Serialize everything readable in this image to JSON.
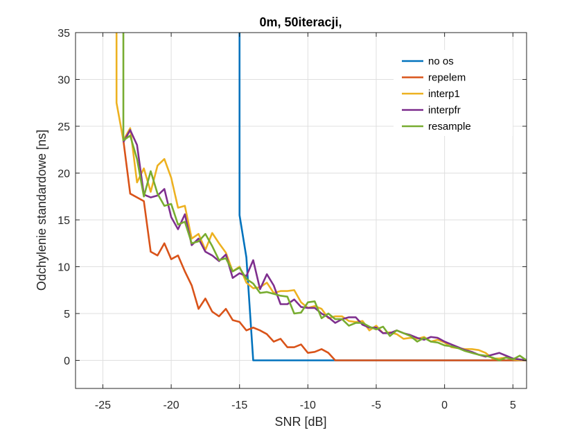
{
  "chart_data": {
    "type": "line",
    "title": "0m, 50iteracji,",
    "xlabel": "SNR [dB]",
    "ylabel": "Odchylenie standardowe [ns]",
    "xlim": [
      -27,
      6
    ],
    "ylim": [
      -3,
      35
    ],
    "xticks": [
      -25,
      -20,
      -15,
      -10,
      -5,
      0,
      5
    ],
    "yticks": [
      0,
      5,
      10,
      15,
      20,
      25,
      30,
      35
    ],
    "grid": true,
    "legend_position": "top-right",
    "series": [
      {
        "name": "no os",
        "color": "#0072BD",
        "points": [
          [
            -15,
            35
          ],
          [
            -15,
            15.5
          ],
          [
            -14.5,
            11
          ],
          [
            -14,
            0
          ],
          [
            6,
            0
          ]
        ]
      },
      {
        "name": "repelem",
        "color": "#D95319",
        "points": [
          [
            -23.5,
            23.5
          ],
          [
            -23,
            17.8
          ],
          [
            -22,
            17
          ],
          [
            -21.5,
            11.6
          ],
          [
            -21,
            11.2
          ],
          [
            -20.5,
            12.5
          ],
          [
            -20,
            10.8
          ],
          [
            -19.5,
            11.2
          ],
          [
            -19,
            9.5
          ],
          [
            -18.5,
            8
          ],
          [
            -18,
            5.5
          ],
          [
            -17.5,
            6.6
          ],
          [
            -17,
            5.2
          ],
          [
            -16.5,
            4.7
          ],
          [
            -16,
            5.5
          ],
          [
            -15.5,
            4.3
          ],
          [
            -15,
            4.1
          ],
          [
            -14.5,
            3.2
          ],
          [
            -14,
            3.5
          ],
          [
            -13.5,
            3.2
          ],
          [
            -13,
            2.8
          ],
          [
            -12.5,
            2
          ],
          [
            -12,
            2.3
          ],
          [
            -11.5,
            1.4
          ],
          [
            -11,
            1.4
          ],
          [
            -10.5,
            1.7
          ],
          [
            -10,
            0.8
          ],
          [
            -9.5,
            0.9
          ],
          [
            -9,
            1.2
          ],
          [
            -8.5,
            0.8
          ],
          [
            -8,
            0
          ],
          [
            5,
            0
          ],
          [
            6,
            0
          ]
        ]
      },
      {
        "name": "interp1",
        "color": "#EDB120",
        "points": [
          [
            -24,
            35
          ],
          [
            -24,
            27.5
          ],
          [
            -23.5,
            23.5
          ],
          [
            -23,
            24.8
          ],
          [
            -22.5,
            19
          ],
          [
            -22,
            20.5
          ],
          [
            -21.5,
            18
          ],
          [
            -21,
            20.8
          ],
          [
            -20.5,
            21.5
          ],
          [
            -20,
            19.5
          ],
          [
            -19.5,
            16.3
          ],
          [
            -19,
            16.5
          ],
          [
            -18.5,
            13
          ],
          [
            -18,
            13.5
          ],
          [
            -17.5,
            11.8
          ],
          [
            -17,
            13.6
          ],
          [
            -16.5,
            12.5
          ],
          [
            -16,
            11.5
          ],
          [
            -15.5,
            9.5
          ],
          [
            -15,
            10
          ],
          [
            -14.5,
            8.3
          ],
          [
            -14,
            7.7
          ],
          [
            -13.5,
            7.8
          ],
          [
            -13,
            8.3
          ],
          [
            -12.5,
            7.2
          ],
          [
            -12,
            7.4
          ],
          [
            -11.5,
            7.4
          ],
          [
            -11,
            7.5
          ],
          [
            -10.5,
            6.2
          ],
          [
            -10,
            5.6
          ],
          [
            -9.5,
            5.8
          ],
          [
            -9,
            5.5
          ],
          [
            -8.5,
            4.5
          ],
          [
            -8,
            4.7
          ],
          [
            -7.5,
            4.7
          ],
          [
            -7,
            4.2
          ],
          [
            -6.5,
            4.1
          ],
          [
            -6,
            4.2
          ],
          [
            -5.5,
            3.2
          ],
          [
            -5,
            3.7
          ],
          [
            -4.5,
            2.9
          ],
          [
            -4,
            3
          ],
          [
            -3.5,
            2.8
          ],
          [
            -3,
            2.3
          ],
          [
            -2.5,
            2.4
          ],
          [
            -2,
            2.3
          ],
          [
            -1.5,
            2.5
          ],
          [
            -1,
            2
          ],
          [
            -0.5,
            2.2
          ],
          [
            0,
            1.9
          ],
          [
            0.5,
            1.4
          ],
          [
            1,
            1.3
          ],
          [
            1.5,
            1.2
          ],
          [
            2,
            1.2
          ],
          [
            2.5,
            1.1
          ],
          [
            3,
            0.8
          ],
          [
            3.5,
            0.2
          ],
          [
            4,
            0.2
          ],
          [
            4.5,
            0.3
          ],
          [
            5,
            0.1
          ],
          [
            5.5,
            0
          ],
          [
            6,
            0
          ]
        ]
      },
      {
        "name": "interpfr",
        "color": "#7E2F8E",
        "points": [
          [
            -23.5,
            23.3
          ],
          [
            -23,
            24.6
          ],
          [
            -22.5,
            23
          ],
          [
            -22,
            17.7
          ],
          [
            -21.5,
            17.4
          ],
          [
            -21,
            17.6
          ],
          [
            -20.5,
            18.3
          ],
          [
            -20,
            15.3
          ],
          [
            -19.5,
            14
          ],
          [
            -19,
            15.6
          ],
          [
            -18.5,
            12.3
          ],
          [
            -18,
            13
          ],
          [
            -17.5,
            11.6
          ],
          [
            -17,
            11.2
          ],
          [
            -16.5,
            10.6
          ],
          [
            -16,
            11.3
          ],
          [
            -15.5,
            8.8
          ],
          [
            -15,
            9.3
          ],
          [
            -14.5,
            9
          ],
          [
            -14,
            10.7
          ],
          [
            -13.5,
            7.6
          ],
          [
            -13,
            9.2
          ],
          [
            -12.5,
            8
          ],
          [
            -12,
            6
          ],
          [
            -11.5,
            6
          ],
          [
            -11,
            6.5
          ],
          [
            -10.5,
            5.7
          ],
          [
            -10,
            5.6
          ],
          [
            -9.5,
            5.6
          ],
          [
            -9,
            5
          ],
          [
            -8.5,
            4.6
          ],
          [
            -8,
            4
          ],
          [
            -7.5,
            4.4
          ],
          [
            -7,
            4.6
          ],
          [
            -6.5,
            4.6
          ],
          [
            -6,
            3.8
          ],
          [
            -5.5,
            3.5
          ],
          [
            -5,
            3.5
          ],
          [
            -4.5,
            2.9
          ],
          [
            -4,
            2.9
          ],
          [
            -3.5,
            3.2
          ],
          [
            -3,
            2.9
          ],
          [
            -2.5,
            2.7
          ],
          [
            -2,
            2.4
          ],
          [
            -1.5,
            2.2
          ],
          [
            -1,
            2.5
          ],
          [
            -0.5,
            2.4
          ],
          [
            0,
            2
          ],
          [
            0.5,
            1.7
          ],
          [
            1,
            1.4
          ],
          [
            1.5,
            1.1
          ],
          [
            2,
            0.9
          ],
          [
            2.5,
            0.6
          ],
          [
            3,
            0.4
          ],
          [
            3.5,
            0.6
          ],
          [
            4,
            0.8
          ],
          [
            4.5,
            0.5
          ],
          [
            5,
            0.2
          ],
          [
            5.5,
            0.1
          ],
          [
            6,
            0
          ]
        ]
      },
      {
        "name": "resample",
        "color": "#77AC30",
        "points": [
          [
            -23.5,
            35
          ],
          [
            -23.5,
            23.5
          ],
          [
            -23,
            24
          ],
          [
            -22.5,
            21.5
          ],
          [
            -22,
            17.5
          ],
          [
            -21.5,
            20.2
          ],
          [
            -21,
            17.8
          ],
          [
            -20.5,
            16.5
          ],
          [
            -20,
            16.7
          ],
          [
            -19.5,
            14.5
          ],
          [
            -19,
            14.8
          ],
          [
            -18.5,
            12.5
          ],
          [
            -18,
            12.7
          ],
          [
            -17.5,
            13.5
          ],
          [
            -17,
            12.2
          ],
          [
            -16.5,
            10.7
          ],
          [
            -16,
            10.9
          ],
          [
            -15.5,
            9.5
          ],
          [
            -15,
            9.9
          ],
          [
            -14.5,
            8.7
          ],
          [
            -14,
            8.2
          ],
          [
            -13.5,
            7.2
          ],
          [
            -13,
            7.3
          ],
          [
            -12.5,
            7.1
          ],
          [
            -12,
            6.9
          ],
          [
            -11.5,
            6.8
          ],
          [
            -11,
            5
          ],
          [
            -10.5,
            5.1
          ],
          [
            -10,
            6.2
          ],
          [
            -9.5,
            6.3
          ],
          [
            -9,
            4.5
          ],
          [
            -8.5,
            5
          ],
          [
            -8,
            4.4
          ],
          [
            -7.5,
            4.4
          ],
          [
            -7,
            3.7
          ],
          [
            -6.5,
            4
          ],
          [
            -6,
            4
          ],
          [
            -5.5,
            3.6
          ],
          [
            -5,
            3.3
          ],
          [
            -4.5,
            3.6
          ],
          [
            -4,
            2.6
          ],
          [
            -3.5,
            3.2
          ],
          [
            -3,
            2.9
          ],
          [
            -2.5,
            2.6
          ],
          [
            -2,
            2
          ],
          [
            -1.5,
            2.4
          ],
          [
            -1,
            2
          ],
          [
            -0.5,
            1.9
          ],
          [
            0,
            1.6
          ],
          [
            0.5,
            1.5
          ],
          [
            1,
            1.3
          ],
          [
            1.5,
            1
          ],
          [
            2,
            0.8
          ],
          [
            2.5,
            0.6
          ],
          [
            3,
            0.5
          ],
          [
            3.5,
            0.3
          ],
          [
            4,
            0
          ],
          [
            4.5,
            0.3
          ],
          [
            5,
            0.1
          ],
          [
            5.5,
            0.5
          ],
          [
            6,
            0
          ]
        ]
      }
    ]
  }
}
